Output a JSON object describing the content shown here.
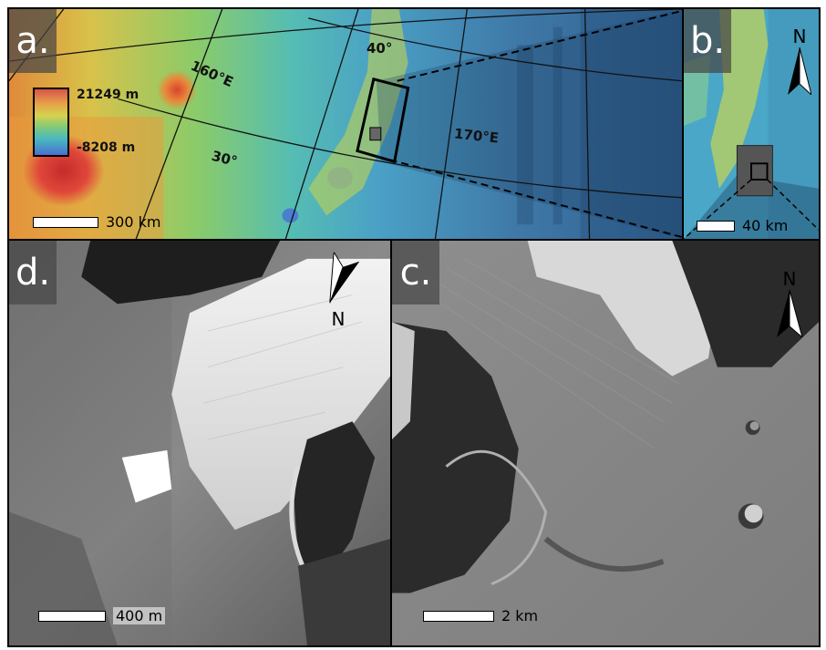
{
  "panels": {
    "a": {
      "label": "a.",
      "legend_max": "21249 m",
      "legend_min": "-8208 m",
      "lon_160": "160°E",
      "lon_170": "170°E",
      "lat_40": "40°",
      "lat_30": "30°",
      "scale": "300 km"
    },
    "b": {
      "label": "b.",
      "north": "N",
      "scale": "40 km"
    },
    "c": {
      "label": "c.",
      "north": "N",
      "scale": "2 km"
    },
    "d": {
      "label": "d.",
      "north": "N",
      "scale": "400 m"
    }
  }
}
